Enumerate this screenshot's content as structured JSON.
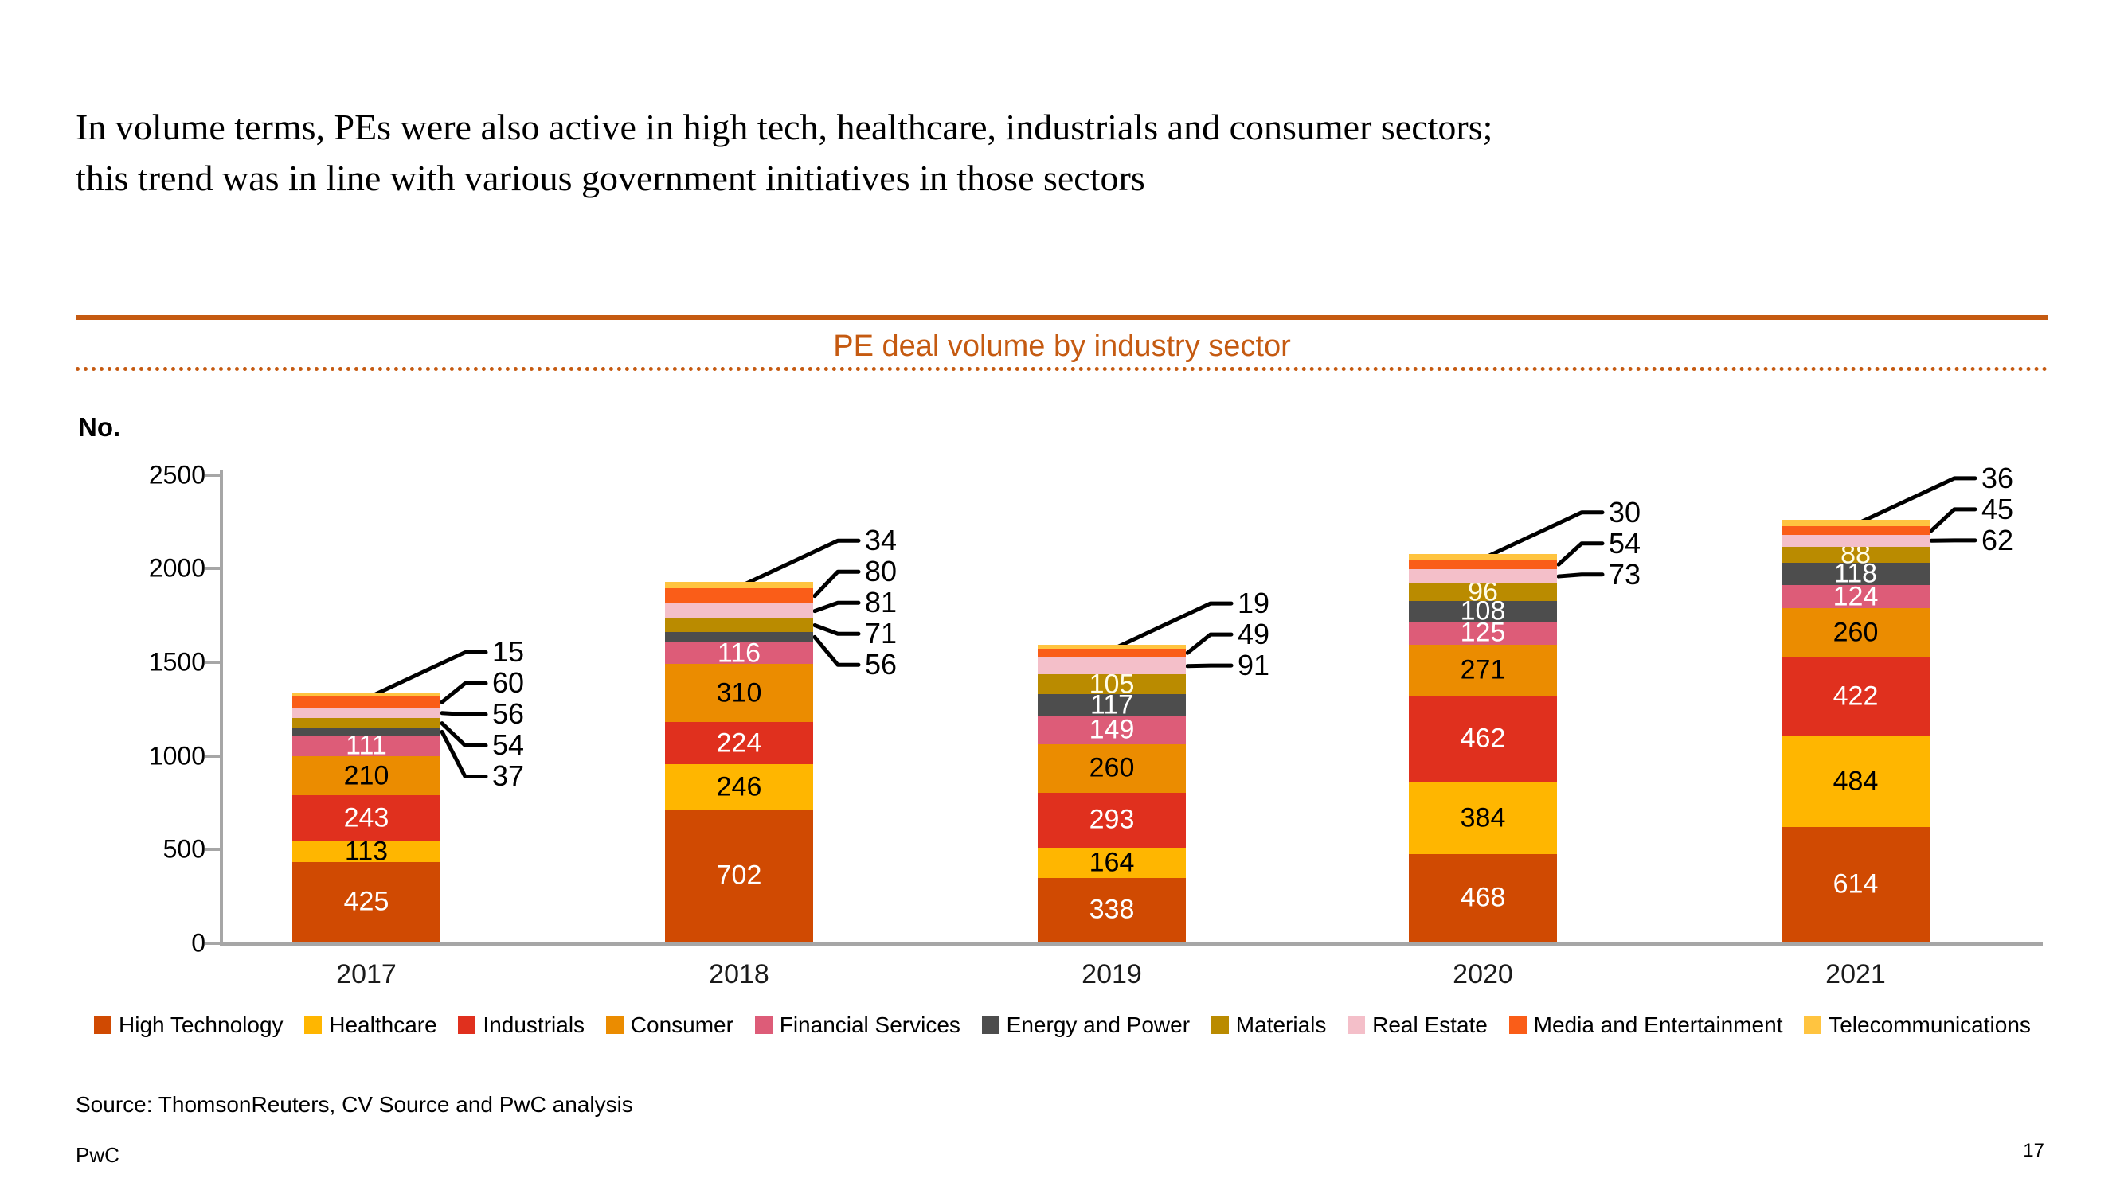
{
  "slide": {
    "title_lines": [
      "In volume terms, PEs were also active in high tech, healthcare, industrials and consumer sectors;",
      "this trend was in line with various government initiatives in those sectors"
    ],
    "source": "Source: ThomsonReuters, CV Source and PwC analysis",
    "footer_brand": "PwC",
    "page_number": "17",
    "accent_color": "#C55A11",
    "axis_color": "#A6A6A6"
  },
  "chart_data": {
    "type": "bar",
    "stacked": true,
    "title": "PE deal volume by industry sector",
    "unit_label": "No.",
    "ylim": [
      0,
      2500
    ],
    "yticks": [
      0,
      500,
      1000,
      1500,
      2000,
      2500
    ],
    "grid": false,
    "legend_position": "bottom",
    "categories": [
      "2017",
      "2018",
      "2019",
      "2020",
      "2021"
    ],
    "series": [
      {
        "name": "High Technology",
        "color": "#D04A02",
        "label_color": "#FFFFFF",
        "values": [
          425,
          702,
          338,
          468,
          614
        ]
      },
      {
        "name": "Healthcare",
        "color": "#FFB600",
        "label_color": "#000000",
        "values": [
          113,
          246,
          164,
          384,
          484
        ]
      },
      {
        "name": "Industrials",
        "color": "#E0301E",
        "label_color": "#FFFFFF",
        "values": [
          243,
          224,
          293,
          462,
          422
        ]
      },
      {
        "name": "Consumer",
        "color": "#EB8C00",
        "label_color": "#000000",
        "values": [
          210,
          310,
          260,
          271,
          260
        ]
      },
      {
        "name": "Financial Services",
        "color": "#DD5C78",
        "label_color": "#FFFFFF",
        "values": [
          111,
          116,
          149,
          125,
          124
        ]
      },
      {
        "name": "Energy and Power",
        "color": "#4D4D4D",
        "label_color": "#FFFFFF",
        "values": [
          37,
          56,
          117,
          108,
          118
        ]
      },
      {
        "name": "Materials",
        "color": "#BA8B00",
        "label_color": "#FFFDE8",
        "values": [
          54,
          71,
          105,
          96,
          88
        ]
      },
      {
        "name": "Real Estate",
        "color": "#F4BFC9",
        "label_color": "#000000",
        "values": [
          56,
          81,
          91,
          73,
          62
        ]
      },
      {
        "name": "Media and Entertainment",
        "color": "#FA5D18",
        "label_color": "#000000",
        "values": [
          60,
          80,
          49,
          54,
          45
        ]
      },
      {
        "name": "Telecommunications",
        "color": "#FFC440",
        "label_color": "#000000",
        "values": [
          15,
          34,
          19,
          30,
          36
        ]
      }
    ],
    "callout_counts": [
      5,
      5,
      3,
      3,
      3
    ]
  }
}
